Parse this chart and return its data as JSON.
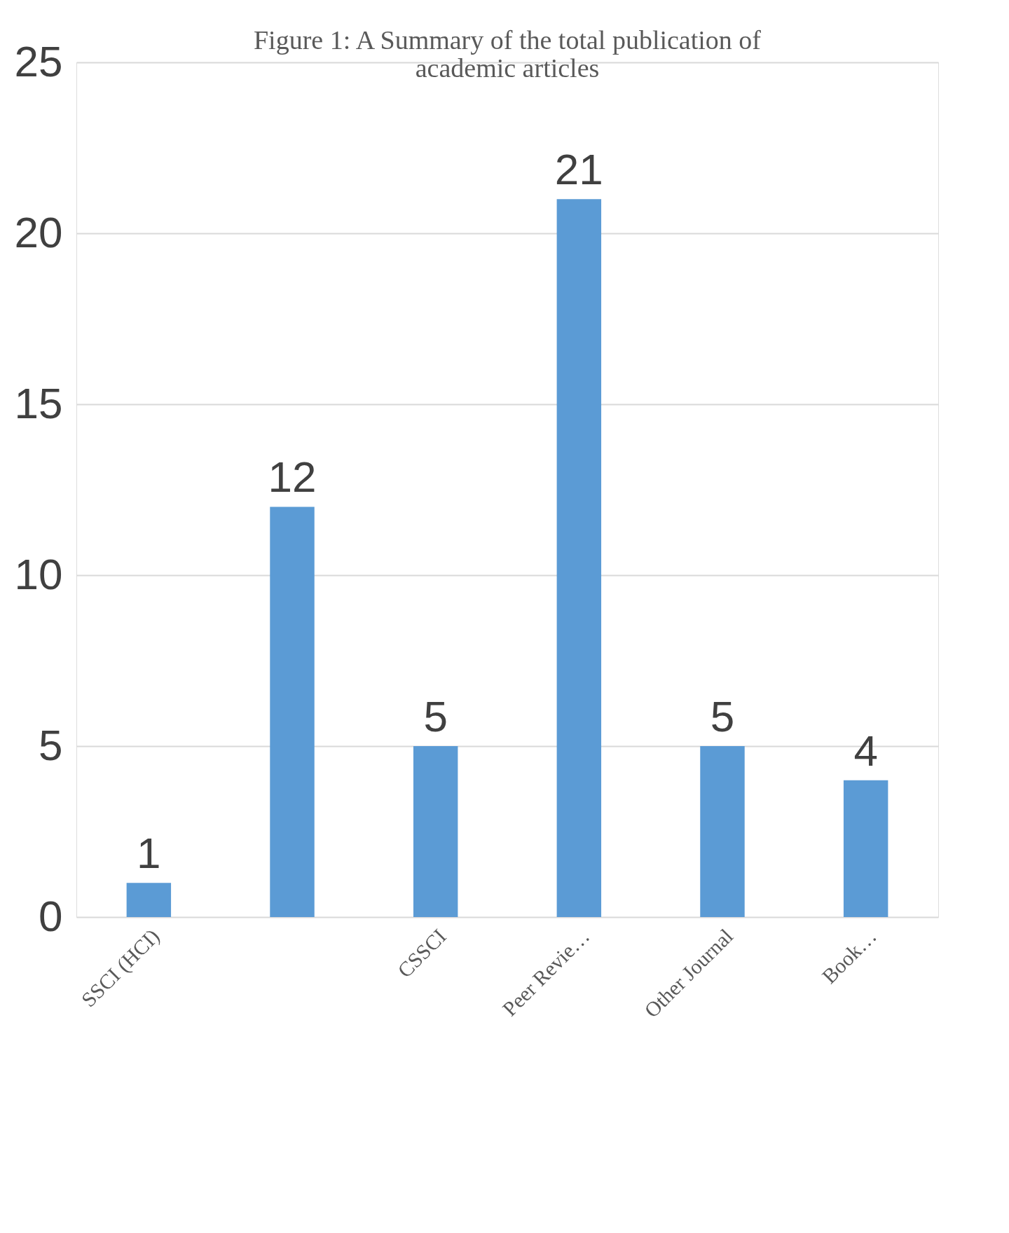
{
  "chart_data": {
    "type": "bar",
    "title": [
      "Figure 1: A Summary of the total publication of",
      "academic articles"
    ],
    "categories": [
      "SSCI (HCI)",
      null,
      "CSSCI",
      "Peer Revie…",
      "Other Journal",
      "Book…"
    ],
    "values": [
      1,
      12,
      5,
      21,
      5,
      4
    ],
    "color": "#5b9bd5",
    "ylim": [
      0,
      25
    ],
    "yticks": [
      0,
      5,
      10,
      15,
      20,
      25
    ],
    "grid": "y",
    "data_labels": true
  }
}
